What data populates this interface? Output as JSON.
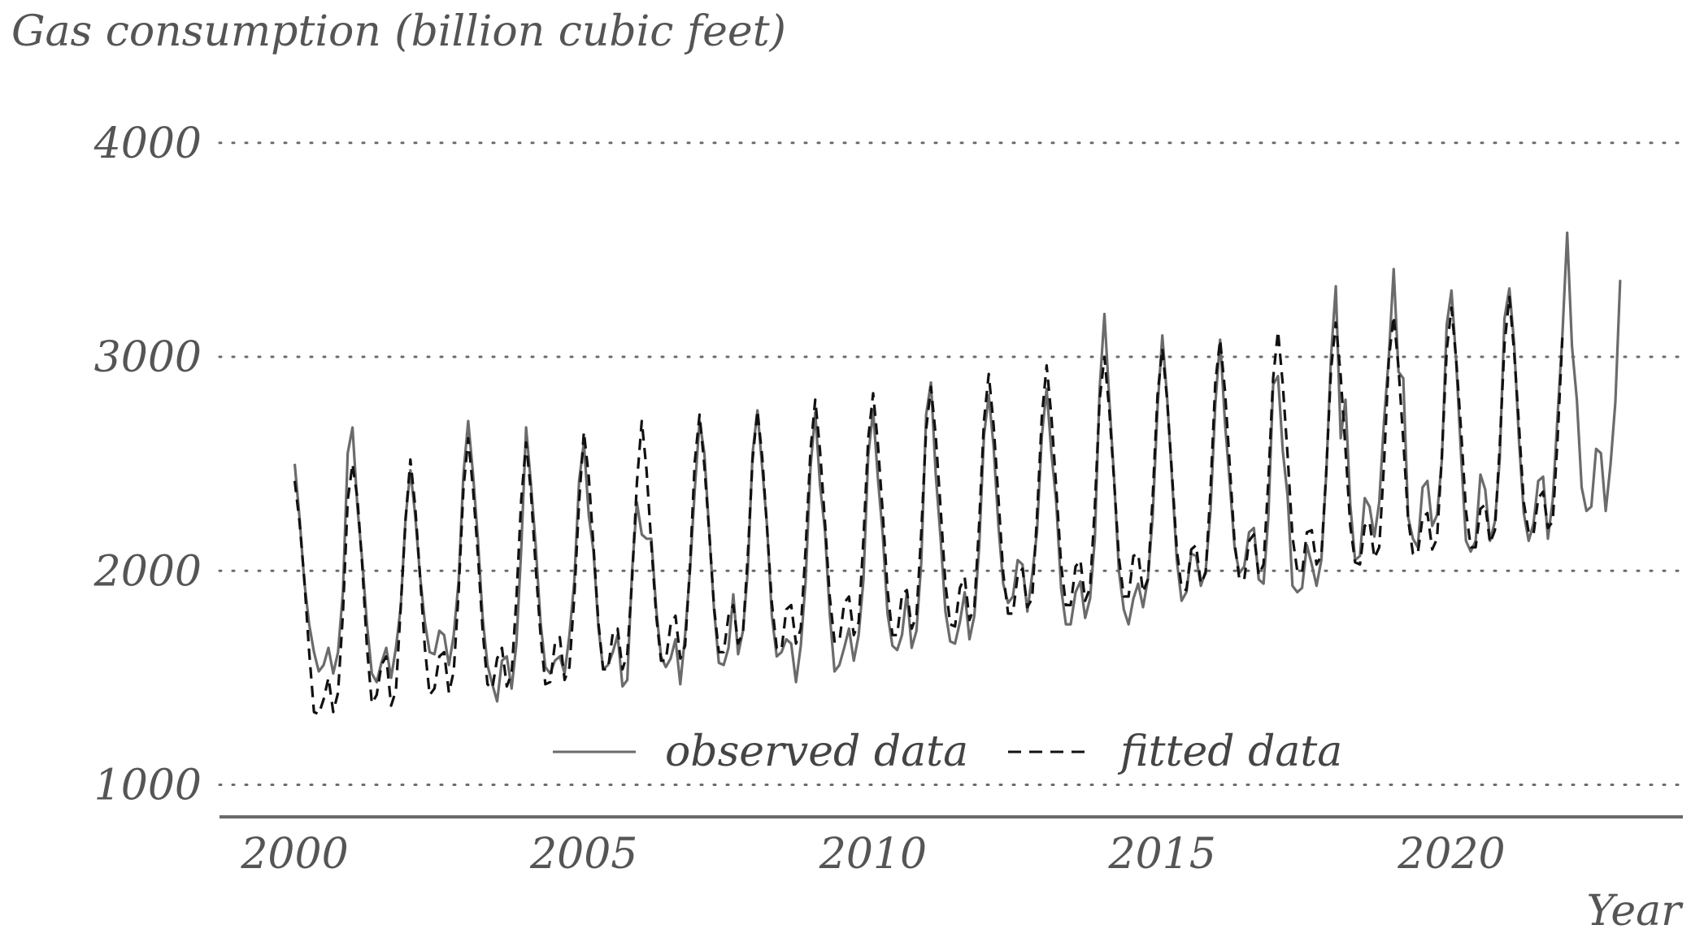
{
  "chart_data": {
    "type": "line",
    "title": "Gas consumption (billion cubic feet)",
    "xlabel": "Year",
    "ylabel": "",
    "xlim": [
      1998.7,
      2024.0
    ],
    "ylim": [
      850,
      4250
    ],
    "yticks": [
      1000,
      2000,
      3000,
      4000
    ],
    "xticks": [
      2000,
      2005,
      2010,
      2015,
      2020
    ],
    "grid": "horizontal dotted",
    "legend_position": "bottom-center",
    "colors": {
      "observed": "#6b6b6b",
      "fitted": "#111111",
      "axis": "#6b6b6b",
      "grid": "#6b6b6b"
    },
    "series": [
      {
        "name": "observed data",
        "style": "solid",
        "start_year": 2000,
        "monthly_values": [
          2500,
          2250,
          1950,
          1750,
          1620,
          1530,
          1560,
          1640,
          1520,
          1620,
          1900,
          2550,
          2670,
          2300,
          2050,
          1750,
          1520,
          1480,
          1570,
          1640,
          1500,
          1640,
          1830,
          2250,
          2470,
          2260,
          1980,
          1760,
          1620,
          1610,
          1720,
          1700,
          1560,
          1700,
          1950,
          2450,
          2700,
          2450,
          2150,
          1780,
          1560,
          1470,
          1390,
          1580,
          1600,
          1450,
          1660,
          2100,
          2670,
          2410,
          2120,
          1760,
          1550,
          1520,
          1580,
          1600,
          1520,
          1700,
          1950,
          2420,
          2600,
          2260,
          2090,
          1740,
          1540,
          1560,
          1620,
          1700,
          1460,
          1490,
          2000,
          2320,
          2170,
          2150,
          2150,
          1820,
          1600,
          1550,
          1590,
          1680,
          1470,
          1700,
          2000,
          2380,
          2700,
          2550,
          2180,
          1820,
          1570,
          1560,
          1640,
          1890,
          1610,
          1720,
          2000,
          2550,
          2750,
          2480,
          2210,
          1790,
          1600,
          1620,
          1680,
          1660,
          1480,
          1650,
          1950,
          2480,
          2740,
          2400,
          2190,
          1800,
          1530,
          1560,
          1640,
          1730,
          1580,
          1700,
          1960,
          2540,
          2750,
          2430,
          2170,
          1800,
          1650,
          1630,
          1700,
          1900,
          1640,
          1720,
          2040,
          2730,
          2880,
          2450,
          2150,
          1810,
          1670,
          1660,
          1760,
          1900,
          1680,
          1790,
          2110,
          2630,
          2820,
          2580,
          2210,
          1940,
          1850,
          1880,
          2050,
          2030,
          1810,
          1980,
          2180,
          2630,
          2850,
          2550,
          2320,
          1920,
          1750,
          1750,
          1900,
          1950,
          1780,
          1870,
          2150,
          2850,
          3200,
          2800,
          2430,
          2000,
          1820,
          1750,
          1870,
          1940,
          1830,
          1960,
          2250,
          2760,
          3100,
          2810,
          2440,
          2050,
          1860,
          1900,
          2080,
          2070,
          1930,
          2000,
          2280,
          2780,
          3080,
          2690,
          2410,
          2110,
          1990,
          2020,
          2180,
          2200,
          1960,
          1940,
          2250,
          2870,
          2910,
          2560,
          2350,
          1930,
          1900,
          1920,
          2120,
          2030,
          1930,
          2050,
          2450,
          3000,
          3330,
          2620,
          2800,
          2310,
          2050,
          2070,
          2340,
          2300,
          2160,
          2320,
          2700,
          3000,
          3410,
          2930,
          2900,
          2250,
          2150,
          2110,
          2390,
          2420,
          2210,
          2260,
          2520,
          3150,
          3310,
          2970,
          2530,
          2140,
          2090,
          2140,
          2450,
          2380,
          2140,
          2230,
          2520,
          3180,
          3320,
          3060,
          2610,
          2270,
          2140,
          2220,
          2420,
          2440,
          2150,
          2330,
          2720,
          3100,
          3580,
          3050,
          2800,
          2390,
          2280,
          2300,
          2570,
          2550,
          2280,
          2500,
          2790,
          3360
        ]
      },
      {
        "name": "fitted data",
        "style": "dashed",
        "start_year": 2000,
        "monthly_values": [
          2420,
          2230,
          1960,
          1620,
          1340,
          1330,
          1400,
          1500,
          1340,
          1430,
          1800,
          2330,
          2500,
          2340,
          2030,
          1640,
          1380,
          1420,
          1560,
          1600,
          1370,
          1440,
          1830,
          2240,
          2520,
          2300,
          1980,
          1640,
          1420,
          1450,
          1600,
          1620,
          1430,
          1530,
          1900,
          2380,
          2620,
          2380,
          2080,
          1720,
          1470,
          1450,
          1590,
          1640,
          1460,
          1520,
          1870,
          2330,
          2600,
          2370,
          2020,
          1700,
          1470,
          1480,
          1660,
          1690,
          1490,
          1550,
          1880,
          2320,
          2650,
          2440,
          2110,
          1760,
          1540,
          1540,
          1710,
          1730,
          1540,
          1610,
          1960,
          2410,
          2700,
          2470,
          2120,
          1790,
          1580,
          1580,
          1750,
          1790,
          1590,
          1650,
          2020,
          2510,
          2730,
          2490,
          2180,
          1830,
          1620,
          1620,
          1790,
          1840,
          1660,
          1710,
          2070,
          2520,
          2750,
          2530,
          2200,
          1850,
          1640,
          1630,
          1820,
          1840,
          1660,
          1730,
          2100,
          2560,
          2800,
          2560,
          2230,
          1880,
          1670,
          1670,
          1850,
          1880,
          1700,
          1760,
          2150,
          2620,
          2830,
          2590,
          2270,
          1910,
          1700,
          1700,
          1890,
          1910,
          1730,
          1790,
          2180,
          2660,
          2860,
          2630,
          2290,
          1940,
          1750,
          1740,
          1920,
          1970,
          1770,
          1830,
          2220,
          2700,
          2920,
          2680,
          2340,
          1990,
          1800,
          1800,
          1980,
          2010,
          1830,
          1870,
          2250,
          2720,
          2960,
          2720,
          2390,
          2030,
          1840,
          1840,
          2020,
          2050,
          1860,
          1920,
          2300,
          2800,
          3000,
          2750,
          2420,
          2060,
          1880,
          1880,
          2070,
          2080,
          1900,
          1960,
          2340,
          2820,
          3040,
          2800,
          2460,
          2100,
          1920,
          1910,
          2100,
          2120,
          1940,
          1990,
          2380,
          2880,
          3080,
          2840,
          2490,
          2130,
          1960,
          1960,
          2140,
          2170,
          1980,
          2030,
          2420,
          2900,
          3120,
          2870,
          2540,
          2160,
          2000,
          1990,
          2180,
          2190,
          2030,
          2070,
          2460,
          2940,
          3160,
          2910,
          2570,
          2210,
          2040,
          2030,
          2210,
          2230,
          2060,
          2110,
          2500,
          2990,
          3190,
          2950,
          2610,
          2240,
          2080,
          2080,
          2250,
          2270,
          2100,
          2150,
          2540,
          3030,
          3230,
          2980,
          2650,
          2280,
          2110,
          2110,
          2290,
          2310,
          2130,
          2190,
          2580,
          3060,
          3280,
          3020,
          2680,
          2320,
          2180,
          2170,
          2340,
          2370,
          2200,
          2230,
          2610,
          3090
        ]
      }
    ]
  }
}
